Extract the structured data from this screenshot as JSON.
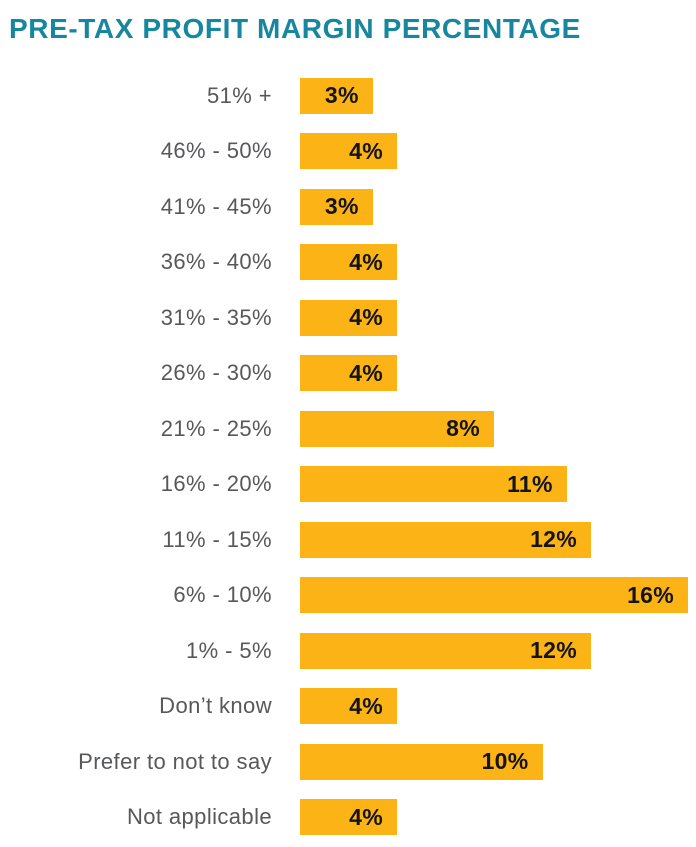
{
  "title": "PRE-TAX PROFIT MARGIN PERCENTAGE",
  "colors": {
    "title": "#17869F",
    "bar": "#FBB315",
    "category_label": "#57585A",
    "value_label": "#141414",
    "background": "#FFFFFF"
  },
  "chart_data": {
    "type": "bar",
    "orientation": "horizontal",
    "title": "PRE-TAX PROFIT MARGIN PERCENTAGE",
    "categories": [
      "51% +",
      "46% - 50%",
      "41% - 45%",
      "36% - 40%",
      "31% - 35%",
      "26% - 30%",
      "21% - 25%",
      "16% - 20%",
      "11% - 15%",
      "6% - 10%",
      "1% - 5%",
      "Don’t know",
      "Prefer to not to say",
      "Not applicable"
    ],
    "values": [
      3,
      4,
      3,
      4,
      4,
      4,
      8,
      11,
      12,
      16,
      12,
      4,
      10,
      4
    ],
    "value_labels": [
      "3%",
      "4%",
      "3%",
      "4%",
      "4%",
      "4%",
      "8%",
      "11%",
      "12%",
      "16%",
      "12%",
      "4%",
      "10%",
      "4%"
    ],
    "xlabel": "",
    "ylabel": "",
    "xlim": [
      0,
      16
    ],
    "grid": false,
    "legend": false,
    "value_labels_position": "inside-end"
  }
}
